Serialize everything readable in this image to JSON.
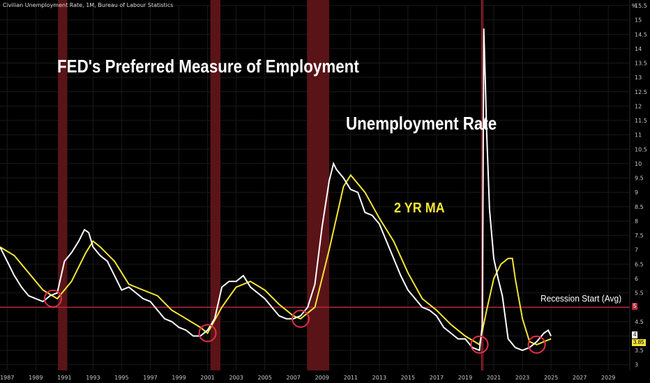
{
  "header": {
    "source": "Civilian Unemployment Rate, 1M, Bureau of Labour Statistics",
    "unit": "%"
  },
  "annotations": {
    "title": "FED's Preferred Measure of Employment",
    "rate_label": "Unemployment Rate",
    "ma_label": "2 YR MA",
    "threshold_label": "Recession Start (Avg)"
  },
  "badges": {
    "threshold": "5",
    "last_rate": "4",
    "last_ma": "3.85"
  },
  "colors": {
    "background": "#000000",
    "rate": "#ffffff",
    "ma": "#f5e636",
    "threshold": "#b3283a",
    "recession": "#5a1418",
    "marker": "#e0304a",
    "grid": "#1a1a1a"
  },
  "chart_data": {
    "type": "line",
    "xlim": [
      1986.5,
      2030.5
    ],
    "ylim": [
      2.8,
      15.5
    ],
    "x_ticks": [
      "1987",
      "1989",
      "1991",
      "1993",
      "1995",
      "1997",
      "1999",
      "2001",
      "2003",
      "2005",
      "2007",
      "2009",
      "2011",
      "2013",
      "2015",
      "2017",
      "2019",
      "2021",
      "2023",
      "2025",
      "2027",
      "2029"
    ],
    "y_ticks": [
      "3",
      "3.5",
      "4",
      "4.5",
      "5",
      "5.5",
      "6",
      "6.5",
      "7",
      "7.5",
      "8",
      "8.5",
      "9",
      "9.5",
      "10",
      "10.5",
      "11",
      "11.5",
      "12",
      "12.5",
      "13",
      "13.5",
      "14",
      "14.5",
      "15",
      "15.5"
    ],
    "threshold": 5.0,
    "recessions": [
      [
        1990.55,
        1991.2
      ],
      [
        2001.2,
        2001.9
      ],
      [
        2007.95,
        2009.5
      ],
      [
        2020.15,
        2020.3
      ]
    ],
    "markers": [
      [
        1990.2,
        5.3
      ],
      [
        2001.0,
        4.1
      ],
      [
        2007.5,
        4.6
      ],
      [
        2020.0,
        3.7
      ],
      [
        2024.0,
        3.7
      ]
    ],
    "series": [
      {
        "name": "Unemployment Rate",
        "x": [
          1986.5,
          1987.0,
          1987.5,
          1988.0,
          1988.5,
          1989.0,
          1989.5,
          1990.0,
          1990.5,
          1991.0,
          1991.5,
          1992.0,
          1992.4,
          1992.7,
          1993.0,
          1993.5,
          1994.0,
          1994.5,
          1995.0,
          1995.5,
          1996.0,
          1996.5,
          1997.0,
          1997.5,
          1998.0,
          1998.5,
          1999.0,
          1999.5,
          2000.0,
          2000.5,
          2001.0,
          2001.5,
          2002.0,
          2002.5,
          2003.0,
          2003.5,
          2004.0,
          2004.5,
          2005.0,
          2005.5,
          2006.0,
          2006.5,
          2007.0,
          2007.5,
          2008.0,
          2008.5,
          2009.0,
          2009.5,
          2009.8,
          2010.0,
          2010.5,
          2011.0,
          2011.5,
          2012.0,
          2012.5,
          2013.0,
          2013.5,
          2014.0,
          2014.5,
          2015.0,
          2015.5,
          2016.0,
          2016.5,
          2017.0,
          2017.5,
          2018.0,
          2018.5,
          2019.0,
          2019.5,
          2020.0,
          2020.2,
          2020.3,
          2020.4,
          2020.5,
          2020.7,
          2021.0,
          2021.3,
          2021.6,
          2022.0,
          2022.5,
          2023.0,
          2023.5,
          2024.0,
          2024.5,
          2024.8,
          2025.0
        ],
        "values": [
          7.1,
          6.6,
          6.1,
          5.7,
          5.4,
          5.3,
          5.2,
          5.4,
          5.5,
          6.6,
          6.9,
          7.3,
          7.7,
          7.6,
          7.1,
          6.8,
          6.6,
          6.1,
          5.6,
          5.7,
          5.5,
          5.3,
          5.2,
          4.9,
          4.6,
          4.5,
          4.3,
          4.2,
          4.0,
          4.0,
          4.2,
          4.6,
          5.7,
          5.9,
          5.9,
          6.1,
          5.7,
          5.5,
          5.3,
          5.0,
          4.7,
          4.6,
          4.6,
          4.7,
          5.0,
          5.8,
          7.8,
          9.4,
          10.0,
          9.8,
          9.5,
          9.1,
          9.0,
          8.3,
          8.2,
          7.9,
          7.3,
          6.7,
          6.1,
          5.6,
          5.3,
          5.0,
          4.9,
          4.7,
          4.3,
          4.1,
          3.9,
          3.9,
          3.6,
          3.5,
          4.4,
          14.7,
          13.0,
          11.1,
          8.4,
          6.7,
          6.0,
          5.4,
          3.9,
          3.6,
          3.5,
          3.6,
          3.8,
          4.1,
          4.2,
          4.0
        ]
      },
      {
        "name": "2 YR MA",
        "x": [
          1986.5,
          1987.5,
          1988.5,
          1989.5,
          1990.5,
          1991.5,
          1992.5,
          1993.0,
          1993.5,
          1994.5,
          1995.5,
          1996.5,
          1997.5,
          1998.5,
          1999.5,
          2000.5,
          2001.0,
          2002.0,
          2003.0,
          2004.0,
          2005.0,
          2006.0,
          2007.0,
          2007.5,
          2008.5,
          2009.5,
          2010.5,
          2011.0,
          2012.0,
          2013.0,
          2014.0,
          2015.0,
          2016.0,
          2017.0,
          2018.0,
          2019.0,
          2020.0,
          2020.5,
          2021.0,
          2021.5,
          2022.0,
          2022.3,
          2022.5,
          2023.0,
          2023.5,
          2024.0,
          2024.5,
          2025.0
        ],
        "values": [
          7.1,
          6.8,
          6.2,
          5.6,
          5.3,
          5.9,
          6.9,
          7.3,
          7.1,
          6.6,
          5.8,
          5.6,
          5.4,
          4.9,
          4.6,
          4.3,
          4.1,
          5.0,
          5.7,
          5.9,
          5.6,
          5.1,
          4.7,
          4.6,
          5.0,
          7.0,
          9.2,
          9.6,
          9.0,
          8.1,
          7.3,
          6.2,
          5.3,
          4.9,
          4.4,
          4.0,
          3.7,
          4.9,
          6.0,
          6.5,
          6.7,
          6.7,
          6.0,
          4.6,
          3.8,
          3.7,
          3.8,
          3.9
        ]
      }
    ]
  }
}
